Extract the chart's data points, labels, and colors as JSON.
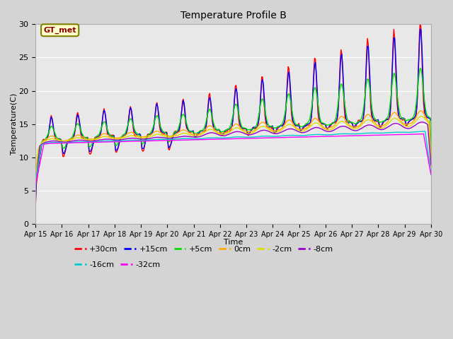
{
  "title": "Temperature Profile B",
  "xlabel": "Time",
  "ylabel": "Temperature(C)",
  "ylim": [
    0,
    30
  ],
  "background_color": "#d4d4d4",
  "plot_bg_color": "#e8e8e8",
  "series_colors": {
    "+30cm": "#ff0000",
    "+15cm": "#0000ff",
    "+5cm": "#00dd00",
    "0cm": "#ffaa00",
    "-2cm": "#dddd00",
    "-8cm": "#9900cc",
    "-16cm": "#00cccc",
    "-32cm": "#ff00ff"
  },
  "x_tick_labels": [
    "Apr 15",
    "Apr 16",
    "Apr 17",
    "Apr 18",
    "Apr 19",
    "Apr 20",
    "Apr 21",
    "Apr 22",
    "Apr 23",
    "Apr 24",
    "Apr 25",
    "Apr 26",
    "Apr 27",
    "Apr 28",
    "Apr 29",
    "Apr 30"
  ],
  "gt_met_label": "GT_met",
  "legend_row1": [
    "+30cm",
    "+15cm",
    "+5cm",
    "0cm",
    "-2cm",
    "-8cm"
  ],
  "legend_row2": [
    "-16cm",
    "-32cm"
  ],
  "n_points": 480,
  "days": 15
}
